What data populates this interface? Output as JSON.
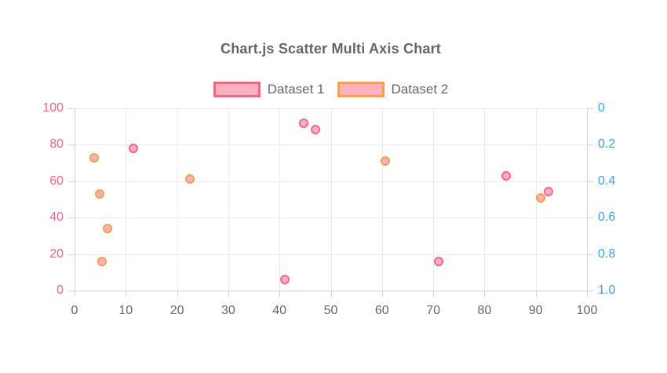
{
  "title": "Chart.js Scatter Multi Axis Chart",
  "legend": {
    "position": "top",
    "entries": [
      {
        "label": "Dataset 1",
        "border_color": "#ff6384",
        "background_color": "#ffb1c1"
      },
      {
        "label": "Dataset 2",
        "border_color": "#ff9f40",
        "background_color": "#ffb1c1"
      }
    ]
  },
  "chart_data": {
    "type": "scatter",
    "title": "Chart.js Scatter Multi Axis Chart",
    "grid": true,
    "legend_position": "top",
    "x_axis": {
      "min": 0,
      "max": 100,
      "tick_labels": [
        "0",
        "10",
        "20",
        "30",
        "40",
        "50",
        "60",
        "70",
        "80",
        "90",
        "100"
      ],
      "tick_color": "#666666"
    },
    "y_axis_left": {
      "min": 0,
      "max": 100,
      "tick_labels": [
        "0",
        "20",
        "40",
        "60",
        "80",
        "100"
      ],
      "tick_color": "#ff6384"
    },
    "y_axis_right": {
      "min": 0,
      "max": 1,
      "reversed": true,
      "tick_labels": [
        "0",
        "0.2",
        "0.4",
        "0.6",
        "0.8",
        "1.0"
      ],
      "tick_color": "#36a2eb"
    },
    "series": [
      {
        "name": "Dataset 1",
        "axis": "left",
        "border_color": "#ff6384",
        "background_color": "#ffb1c1",
        "points": [
          {
            "x": 11.5,
            "y": 78
          },
          {
            "x": 41,
            "y": 6
          },
          {
            "x": 44.7,
            "y": 92
          },
          {
            "x": 47,
            "y": 88.5
          },
          {
            "x": 71,
            "y": 16
          },
          {
            "x": 84.3,
            "y": 63
          },
          {
            "x": 92.5,
            "y": 54.5
          }
        ]
      },
      {
        "name": "Dataset 2",
        "axis": "right",
        "border_color": "#ff9f40",
        "background_color": "#ffb1c1",
        "points": [
          {
            "x": 3.8,
            "y": 0.27
          },
          {
            "x": 4.9,
            "y": 0.47
          },
          {
            "x": 5.4,
            "y": 0.84
          },
          {
            "x": 6.4,
            "y": 0.66
          },
          {
            "x": 22.5,
            "y": 0.39
          },
          {
            "x": 60.7,
            "y": 0.29
          },
          {
            "x": 91,
            "y": 0.49
          }
        ]
      }
    ]
  }
}
